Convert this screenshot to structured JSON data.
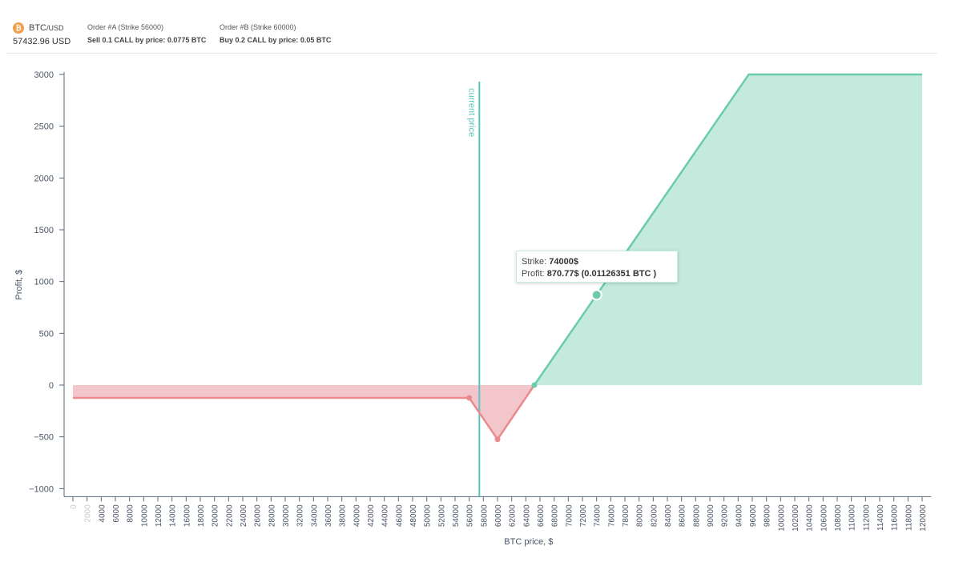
{
  "header": {
    "asset": {
      "base": "BTC",
      "quote": "/USD",
      "coin_symbol": "₿"
    },
    "current_price_text": "57432.96  USD",
    "orders": [
      {
        "title": "Order #A (Strike 56000)",
        "description": "Sell 0.1 CALL by price: 0.0775 BTC"
      },
      {
        "title": "Order #B (Strike 60000)",
        "description": "Buy 0.2 CALL by price: 0.05 BTC"
      }
    ]
  },
  "tooltip": {
    "strike_label": "Strike:",
    "strike_value": "74000$",
    "profit_label": "Profit:",
    "profit_value": "870.77$",
    "profit_btc": "(0.01126351 BTC )"
  },
  "chart_data": {
    "type": "area",
    "xlabel": "BTC price, $",
    "ylabel": "Profit, $",
    "xlim": [
      0,
      120000
    ],
    "ylim": [
      -1000,
      3000
    ],
    "x_ticks": [
      0,
      2000,
      4000,
      6000,
      8000,
      10000,
      12000,
      14000,
      16000,
      18000,
      20000,
      22000,
      24000,
      26000,
      28000,
      30000,
      32000,
      34000,
      36000,
      38000,
      40000,
      42000,
      44000,
      46000,
      48000,
      50000,
      52000,
      54000,
      56000,
      58000,
      60000,
      62000,
      64000,
      66000,
      68000,
      70000,
      72000,
      74000,
      76000,
      78000,
      80000,
      82000,
      84000,
      86000,
      88000,
      90000,
      92000,
      94000,
      96000,
      98000,
      100000,
      102000,
      104000,
      106000,
      108000,
      110000,
      112000,
      114000,
      116000,
      118000,
      120000
    ],
    "y_ticks": [
      3000,
      2500,
      2000,
      1500,
      1000,
      500,
      0,
      -500,
      -1000
    ],
    "y_tick_labels": [
      "3000",
      "2500",
      "2000",
      "1500",
      "1000",
      "500",
      "0",
      "−500",
      "−1000"
    ],
    "current_price": {
      "x": 57432.96,
      "label": "current price"
    },
    "series": [
      {
        "points": [
          [
            0,
            -124
          ],
          [
            56000,
            -124
          ],
          [
            60000,
            -524
          ],
          [
            65200,
            0
          ],
          [
            74000,
            870.77
          ],
          [
            95500,
            3000
          ],
          [
            120000,
            3000
          ]
        ]
      }
    ],
    "markers": [
      [
        56000,
        -124
      ],
      [
        60000,
        -524
      ],
      [
        65200,
        0
      ],
      [
        74000,
        870.77
      ]
    ],
    "highlight": [
      74000,
      870.77
    ],
    "colors": {
      "loss": "#e98a8f",
      "loss_fill": "#f2c6ca",
      "profit": "#6ccca8",
      "profit_fill": "#c3eadc",
      "current_price": "#5cc4c0",
      "axis": "#59677a",
      "text": "#4a5565"
    }
  }
}
